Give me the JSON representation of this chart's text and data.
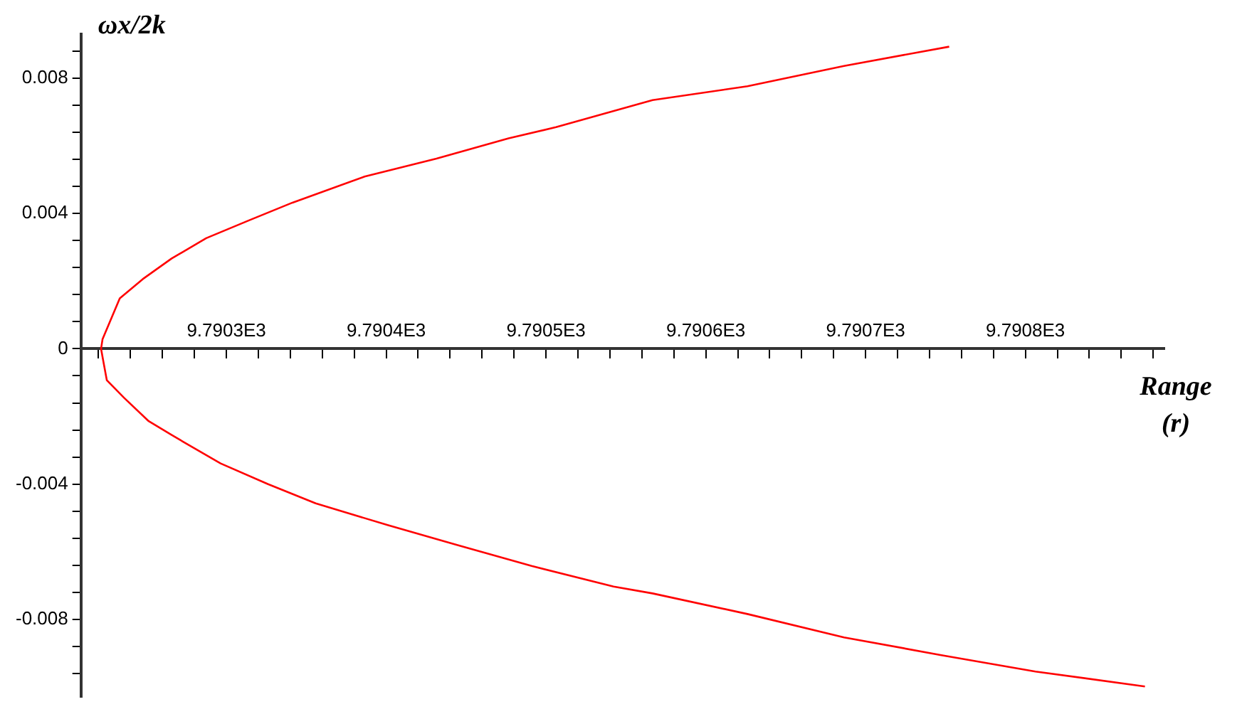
{
  "chart_data": {
    "type": "line",
    "xlabel": "Range (r)",
    "ylabel": "ωx/2k",
    "xlim": [
      9790.209,
      9790.887
    ],
    "ylim": [
      -0.0103,
      0.0093
    ],
    "xticks": [
      {
        "value": 9790.22,
        "label": null
      },
      {
        "value": 9790.24,
        "label": null
      },
      {
        "value": 9790.26,
        "label": null
      },
      {
        "value": 9790.28,
        "label": null
      },
      {
        "value": 9790.3,
        "label": "9.7903E3"
      },
      {
        "value": 9790.32,
        "label": null
      },
      {
        "value": 9790.34,
        "label": null
      },
      {
        "value": 9790.36,
        "label": null
      },
      {
        "value": 9790.38,
        "label": null
      },
      {
        "value": 9790.4,
        "label": "9.7904E3"
      },
      {
        "value": 9790.42,
        "label": null
      },
      {
        "value": 9790.44,
        "label": null
      },
      {
        "value": 9790.46,
        "label": null
      },
      {
        "value": 9790.48,
        "label": null
      },
      {
        "value": 9790.5,
        "label": "9.7905E3"
      },
      {
        "value": 9790.52,
        "label": null
      },
      {
        "value": 9790.54,
        "label": null
      },
      {
        "value": 9790.56,
        "label": null
      },
      {
        "value": 9790.58,
        "label": null
      },
      {
        "value": 9790.6,
        "label": "9.7906E3"
      },
      {
        "value": 9790.62,
        "label": null
      },
      {
        "value": 9790.64,
        "label": null
      },
      {
        "value": 9790.66,
        "label": null
      },
      {
        "value": 9790.68,
        "label": null
      },
      {
        "value": 9790.7,
        "label": "9.7907E3"
      },
      {
        "value": 9790.72,
        "label": null
      },
      {
        "value": 9790.74,
        "label": null
      },
      {
        "value": 9790.76,
        "label": null
      },
      {
        "value": 9790.78,
        "label": null
      },
      {
        "value": 9790.8,
        "label": "9.7908E3"
      },
      {
        "value": 9790.82,
        "label": null
      },
      {
        "value": 9790.84,
        "label": null
      },
      {
        "value": 9790.86,
        "label": null
      },
      {
        "value": 9790.88,
        "label": null
      }
    ],
    "yticks": [
      {
        "value": -0.0096,
        "label": null
      },
      {
        "value": -0.0088,
        "label": null
      },
      {
        "value": -0.008,
        "label": "-0.008"
      },
      {
        "value": -0.0072,
        "label": null
      },
      {
        "value": -0.0064,
        "label": null
      },
      {
        "value": -0.0056,
        "label": null
      },
      {
        "value": -0.0048,
        "label": null
      },
      {
        "value": -0.004,
        "label": "-0.004"
      },
      {
        "value": -0.0032,
        "label": null
      },
      {
        "value": -0.0024,
        "label": null
      },
      {
        "value": -0.0016,
        "label": null
      },
      {
        "value": -0.0008,
        "label": null
      },
      {
        "value": 0,
        "label": "0"
      },
      {
        "value": 0.0008,
        "label": null
      },
      {
        "value": 0.0016,
        "label": null
      },
      {
        "value": 0.0024,
        "label": null
      },
      {
        "value": 0.0032,
        "label": null
      },
      {
        "value": 0.004,
        "label": "0.004"
      },
      {
        "value": 0.0048,
        "label": null
      },
      {
        "value": 0.0056,
        "label": null
      },
      {
        "value": 0.0064,
        "label": null
      },
      {
        "value": 0.0072,
        "label": null
      },
      {
        "value": 0.008,
        "label": "0.008"
      },
      {
        "value": 0.0088,
        "label": null
      }
    ],
    "grid": false,
    "legend": false,
    "marker": "none",
    "line_style": "solid",
    "series": [
      {
        "color": "#ff0000",
        "x": [
          9790.7523,
          9790.6865,
          9790.6261,
          9790.5667,
          9790.5063,
          9790.4766,
          9790.4315,
          9790.3865,
          9790.3414,
          9790.3144,
          9790.2874,
          9790.2658,
          9790.2477,
          9790.2333,
          9790.2225,
          9790.2216,
          9790.2225,
          9790.2252,
          9790.236,
          9790.2514,
          9790.2658,
          9790.2964,
          9790.3261,
          9790.3559,
          9790.4009,
          9790.4459,
          9790.491,
          9790.5423,
          9790.5667,
          9790.6261,
          9790.6865,
          9790.7468,
          9790.8063,
          9790.8748
        ],
        "values": [
          0.00893,
          0.00836,
          0.00776,
          0.00735,
          0.00655,
          0.00622,
          0.00562,
          0.00509,
          0.00432,
          0.0038,
          0.00327,
          0.00267,
          0.00206,
          0.00149,
          0.00028,
          0,
          -0.00024,
          -0.00093,
          -0.00145,
          -0.00214,
          -0.00255,
          -0.00339,
          -0.004,
          -0.00457,
          -0.00521,
          -0.00582,
          -0.00642,
          -0.00703,
          -0.00723,
          -0.00784,
          -0.00853,
          -0.00905,
          -0.00954,
          -0.00998
        ]
      }
    ]
  }
}
